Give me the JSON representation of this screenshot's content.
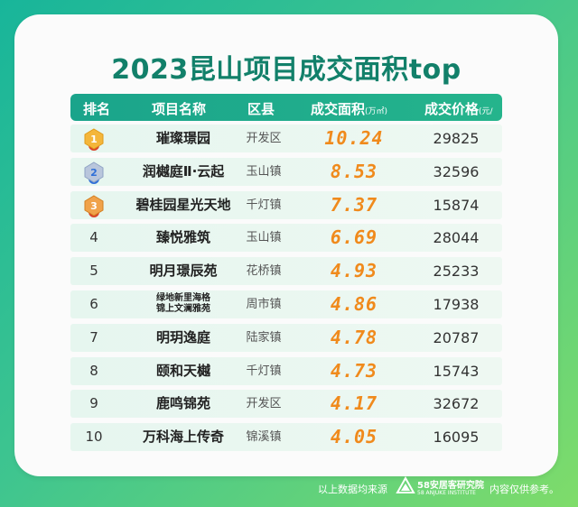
{
  "title": "2023昆山项目成交面积top",
  "headers": {
    "rank": "排名",
    "name": "项目名称",
    "district": "区县",
    "area": "成交面积",
    "area_unit": "(万㎡)",
    "price": "成交价格",
    "price_unit": "(元/㎡)"
  },
  "rows": [
    {
      "rank": "1",
      "name": "璀璨璟园",
      "district": "开发区",
      "area": "10.24",
      "price": "29825"
    },
    {
      "rank": "2",
      "name": "润樾庭Ⅱ·云起",
      "district": "玉山镇",
      "area": "8.53",
      "price": "32596"
    },
    {
      "rank": "3",
      "name": "碧桂园星光天地",
      "district": "千灯镇",
      "area": "7.37",
      "price": "15874"
    },
    {
      "rank": "4",
      "name": "臻悦雅筑",
      "district": "玉山镇",
      "area": "6.69",
      "price": "28044"
    },
    {
      "rank": "5",
      "name": "明月璟辰苑",
      "district": "花桥镇",
      "area": "4.93",
      "price": "25233"
    },
    {
      "rank": "6",
      "name_line1": "绿地新里海格",
      "name_line2": "锦上文澜雅苑",
      "district": "周市镇",
      "area": "4.86",
      "price": "17938"
    },
    {
      "rank": "7",
      "name": "明玥逸庭",
      "district": "陆家镇",
      "area": "4.78",
      "price": "20787"
    },
    {
      "rank": "8",
      "name": "颐和天樾",
      "district": "千灯镇",
      "area": "4.73",
      "price": "15743"
    },
    {
      "rank": "9",
      "name": "鹿鸣锦苑",
      "district": "开发区",
      "area": "4.17",
      "price": "32672"
    },
    {
      "rank": "10",
      "name": "万科海上传奇",
      "district": "锦溪镇",
      "area": "4.05",
      "price": "16095"
    }
  ],
  "footer": {
    "source_prefix": "以上数据均来源",
    "logo_text": "58安居客研究院",
    "logo_subtext": "58 ANJUKE INSTITUTE",
    "disclaimer": "内容仅供参考。"
  },
  "colors": {
    "accent": "#12806a",
    "header_bg": "#1aa48b",
    "area_text": "#f08a1c",
    "row_bg": "#e6f6ef"
  }
}
